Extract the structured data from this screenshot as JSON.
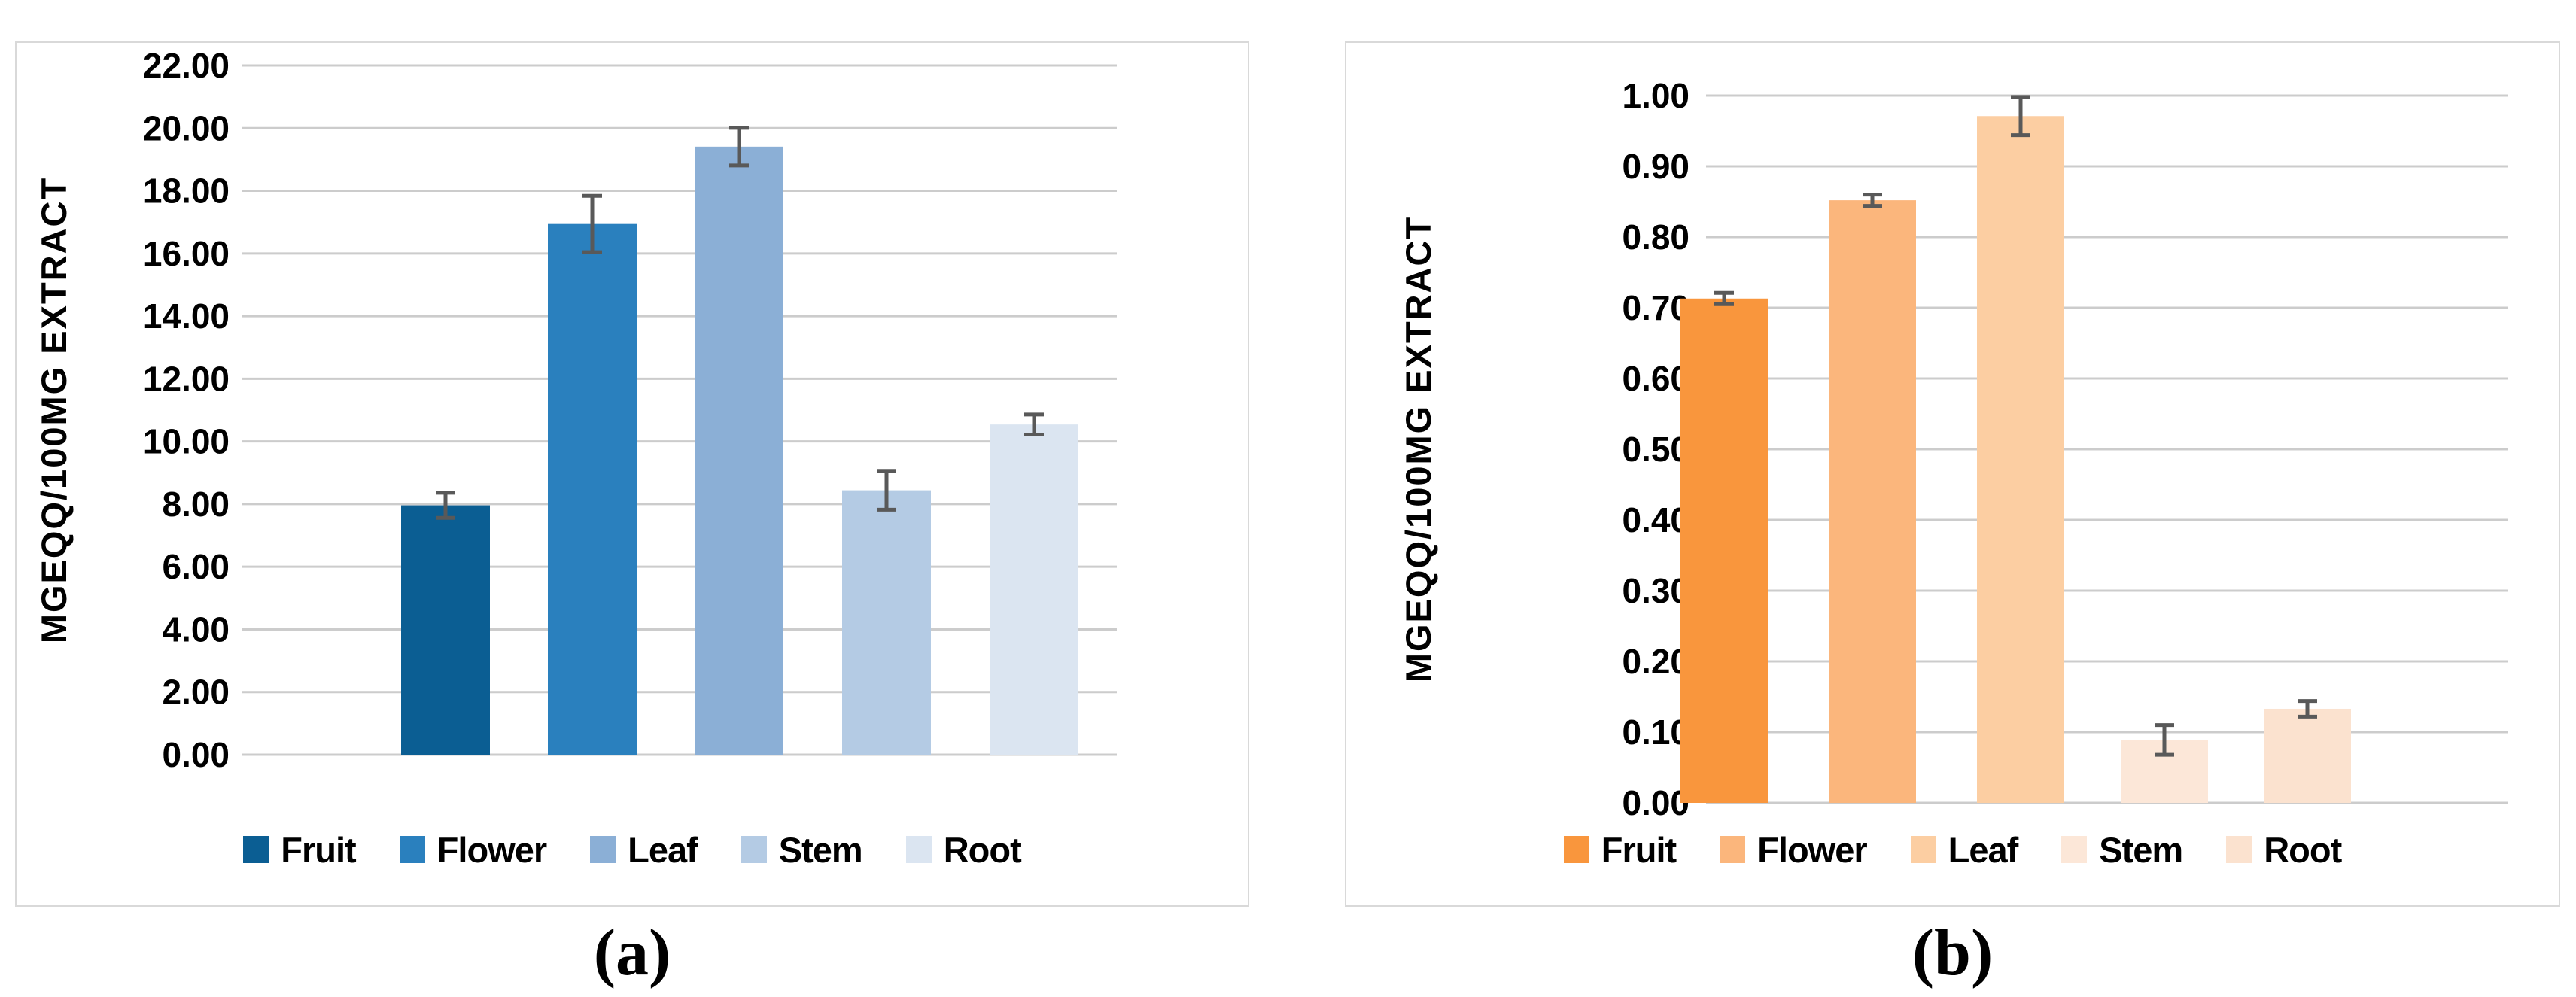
{
  "figure": {
    "background": "#ffffff",
    "panel_border_color": "#d9d9d9",
    "gridline_color": "#cccccc",
    "error_bar_color": "#595959",
    "text_color": "#000000"
  },
  "chart_data": [
    {
      "id": "a",
      "type": "bar",
      "title": "",
      "caption": "(a)",
      "ylabel": "MGEQQ/100MG EXTRACT",
      "xlabel": "",
      "categories": [
        "Fruit",
        "Flower",
        "Leaf",
        "Stem",
        "Root"
      ],
      "values": [
        7.96,
        16.94,
        19.41,
        8.44,
        10.54
      ],
      "errors": [
        0.4,
        0.9,
        0.6,
        0.62,
        0.32
      ],
      "bar_colors": [
        "#0B5E93",
        "#2A80BE",
        "#8BAFD6",
        "#B4CBE4",
        "#DBE5F1"
      ],
      "ylim": [
        0,
        22
      ],
      "ytick_step": 2,
      "ytick_decimals": 2,
      "grid": true,
      "legend_position": "bottom",
      "legend_labels": [
        "Fruit",
        "Flower",
        "Leaf",
        "Stem",
        "Root"
      ]
    },
    {
      "id": "b",
      "type": "bar",
      "title": "",
      "caption": "(b)",
      "ylabel": "MGEQQ/100MG EXTRACT",
      "xlabel": "",
      "categories": [
        "Fruit",
        "Flower",
        "Leaf",
        "Stem",
        "Root"
      ],
      "values": [
        0.713,
        0.852,
        0.971,
        0.089,
        0.133
      ],
      "errors": [
        0.008,
        0.008,
        0.027,
        0.021,
        0.011
      ],
      "bar_colors": [
        "#F9963D",
        "#FBB67C",
        "#FCCEA2",
        "#FCE7D8",
        "#FBE2CF"
      ],
      "ylim": [
        0,
        1
      ],
      "ytick_step": 0.1,
      "ytick_decimals": 2,
      "grid": true,
      "legend_position": "bottom",
      "legend_labels": [
        "Fruit",
        "Flower",
        "Leaf",
        "Stem",
        "Root"
      ]
    }
  ]
}
